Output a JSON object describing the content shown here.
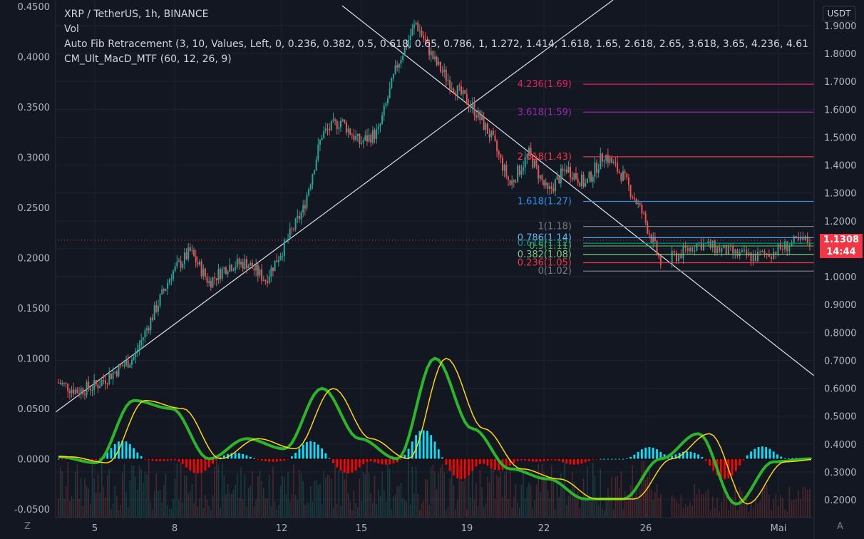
{
  "legend": {
    "symbol": "XRP / TetherUS, 1h, BINANCE",
    "vol": "Vol",
    "fib": "Auto Fib Retracement (3, 10, Values, Left, 0, 0.236, 0.382, 0.5, 0.618, 0.65, 0.786, 1, 1.272, 1.414, 1.618, 1.65, 2.618, 2.65, 3.618, 3.65, 4.236, 4.61",
    "macd": "CM_Ult_MacD_MTF (60, 12, 26, 9)"
  },
  "price_axis": {
    "unit": "USDT",
    "ticks": [
      "1.9000",
      "1.8000",
      "1.7000",
      "1.6000",
      "1.5000",
      "1.4000",
      "1.3000",
      "1.2000",
      "1.1000",
      "1.0000",
      "0.9000",
      "0.8000",
      "0.7000",
      "0.6000",
      "0.5000",
      "0.4000",
      "0.3000",
      "0.2000"
    ],
    "last_price": "1.1308",
    "countdown": "14:44",
    "badge_color": "#f23645"
  },
  "compare_axis": {
    "ticks": [
      "0.4500",
      "0.4000",
      "0.3500",
      "0.3000",
      "0.2500",
      "0.2000",
      "0.1500",
      "0.1000",
      "0.0500",
      "0.0000",
      "-0.0500"
    ]
  },
  "time_axis": {
    "ticks": [
      "5",
      "8",
      "12",
      "15",
      "19",
      "22",
      "26",
      "Mai"
    ]
  },
  "corners": {
    "left": "Z",
    "right": "A"
  },
  "fib_levels": [
    {
      "label": "4.236(1.69)",
      "price": 1.69,
      "color": "#e91e63"
    },
    {
      "label": "3.618(1.59)",
      "price": 1.59,
      "color": "#9c27b0"
    },
    {
      "label": "2.618(1.43)",
      "price": 1.43,
      "color": "#f23645"
    },
    {
      "label": "1.618(1.27)",
      "price": 1.27,
      "color": "#2196f3"
    },
    {
      "label": "1(1.18)",
      "price": 1.18,
      "color": "#787b86"
    },
    {
      "label": "0.786(1.14)",
      "price": 1.14,
      "color": "#64b5f6"
    },
    {
      "label": "0.618(1.12)",
      "price": 1.12,
      "color": "#009688"
    },
    {
      "label": "0.5(1.11)",
      "price": 1.11,
      "color": "#4caf50"
    },
    {
      "label": "0.382(1.08)",
      "price": 1.08,
      "color": "#81c784"
    },
    {
      "label": "0.236(1.05)",
      "price": 1.05,
      "color": "#f23645"
    },
    {
      "label": "0(1.02)",
      "price": 1.02,
      "color": "#787b86"
    }
  ],
  "chart_data": {
    "type": "line",
    "price_series": {
      "x": [
        0,
        5,
        10,
        15,
        20,
        25,
        30,
        35,
        40,
        45,
        50,
        55,
        60,
        65,
        70,
        75,
        80,
        85,
        90,
        95,
        100,
        105,
        110,
        115,
        120,
        125,
        130,
        135,
        140,
        145,
        150,
        155,
        160,
        165,
        170,
        175,
        180,
        185,
        190,
        195,
        200
      ],
      "y": [
        0.62,
        0.59,
        0.61,
        0.66,
        0.71,
        0.86,
        1.01,
        1.09,
        0.98,
        1.04,
        1.05,
        0.99,
        1.11,
        1.24,
        1.51,
        1.56,
        1.48,
        1.52,
        1.76,
        1.91,
        1.77,
        1.68,
        1.61,
        1.5,
        1.33,
        1.44,
        1.3,
        1.39,
        1.33,
        1.44,
        1.36,
        1.23,
        1.05,
        1.08,
        1.12,
        1.1,
        1.08,
        1.07,
        1.09,
        1.12,
        1.13
      ],
      "ylim": [
        0.15,
        1.95
      ]
    },
    "macd": {
      "x": [
        0,
        10,
        20,
        30,
        40,
        50,
        60,
        70,
        80,
        90,
        100,
        110,
        120,
        130,
        140,
        150,
        160,
        170,
        180,
        190,
        200
      ],
      "macd": [
        0.002,
        -0.004,
        0.058,
        0.05,
        0.0,
        0.02,
        0.01,
        0.07,
        0.02,
        0.0,
        0.1,
        0.03,
        -0.01,
        -0.02,
        -0.04,
        -0.04,
        0.0,
        0.025,
        -0.045,
        -0.003,
        0.0
      ],
      "ylim": [
        -0.055,
        0.46
      ]
    }
  }
}
